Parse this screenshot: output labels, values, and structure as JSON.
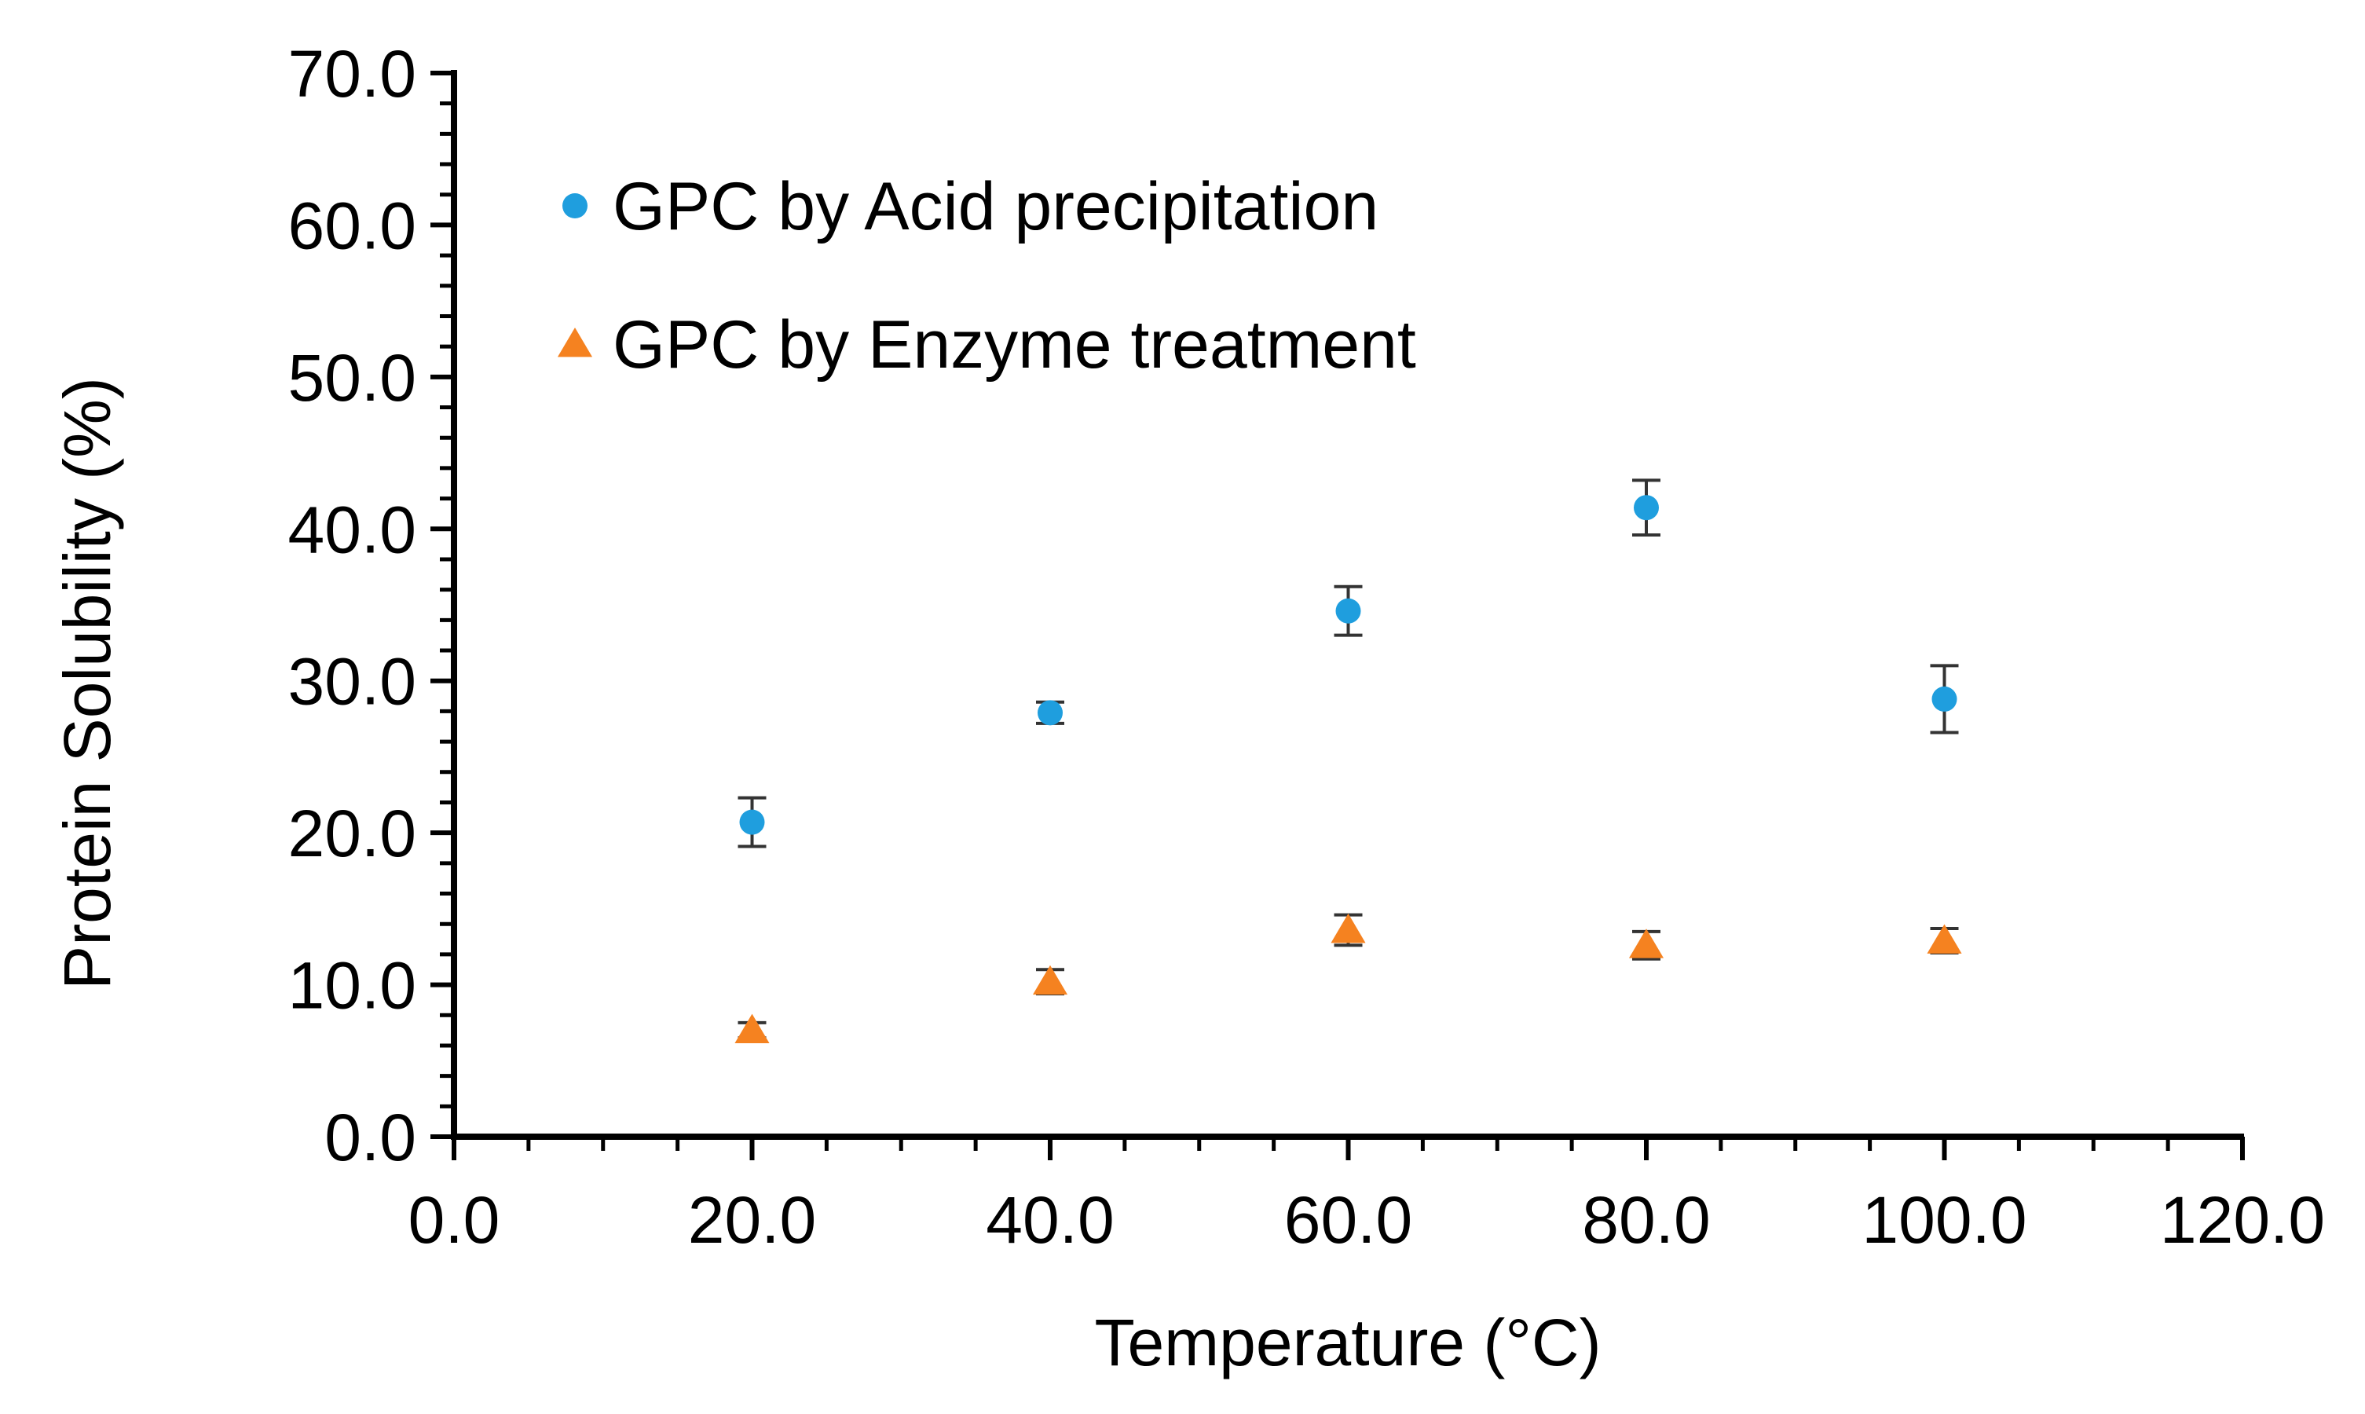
{
  "chart_data": {
    "type": "scatter",
    "title": "",
    "xlabel": "Temperature (°C)",
    "ylabel": "Protein Solubility  (%)",
    "xlim": [
      0,
      120
    ],
    "ylim": [
      0,
      70
    ],
    "x_ticks": [
      "0.0",
      "20.0",
      "40.0",
      "60.0",
      "80.0",
      "100.0",
      "120.0"
    ],
    "y_ticks": [
      "0.0",
      "10.0",
      "20.0",
      "30.0",
      "40.0",
      "50.0",
      "60.0",
      "70.0"
    ],
    "legend_position": "top-left",
    "grid": false,
    "series": [
      {
        "name": "GPC by Acid precipitation",
        "marker": "circle",
        "color": "#1f9ede",
        "x": [
          20,
          40,
          60,
          80,
          100
        ],
        "y": [
          20.7,
          27.9,
          34.6,
          41.4,
          28.8
        ],
        "err": [
          1.6,
          0.7,
          1.6,
          1.8,
          2.2
        ]
      },
      {
        "name": "GPC by Enzyme treatment",
        "marker": "triangle",
        "color": "#f58220",
        "x": [
          20,
          40,
          60,
          80,
          100
        ],
        "y": [
          7.0,
          10.2,
          13.6,
          12.6,
          12.9
        ],
        "err": [
          0.5,
          0.8,
          1.0,
          0.9,
          0.8
        ]
      }
    ]
  }
}
